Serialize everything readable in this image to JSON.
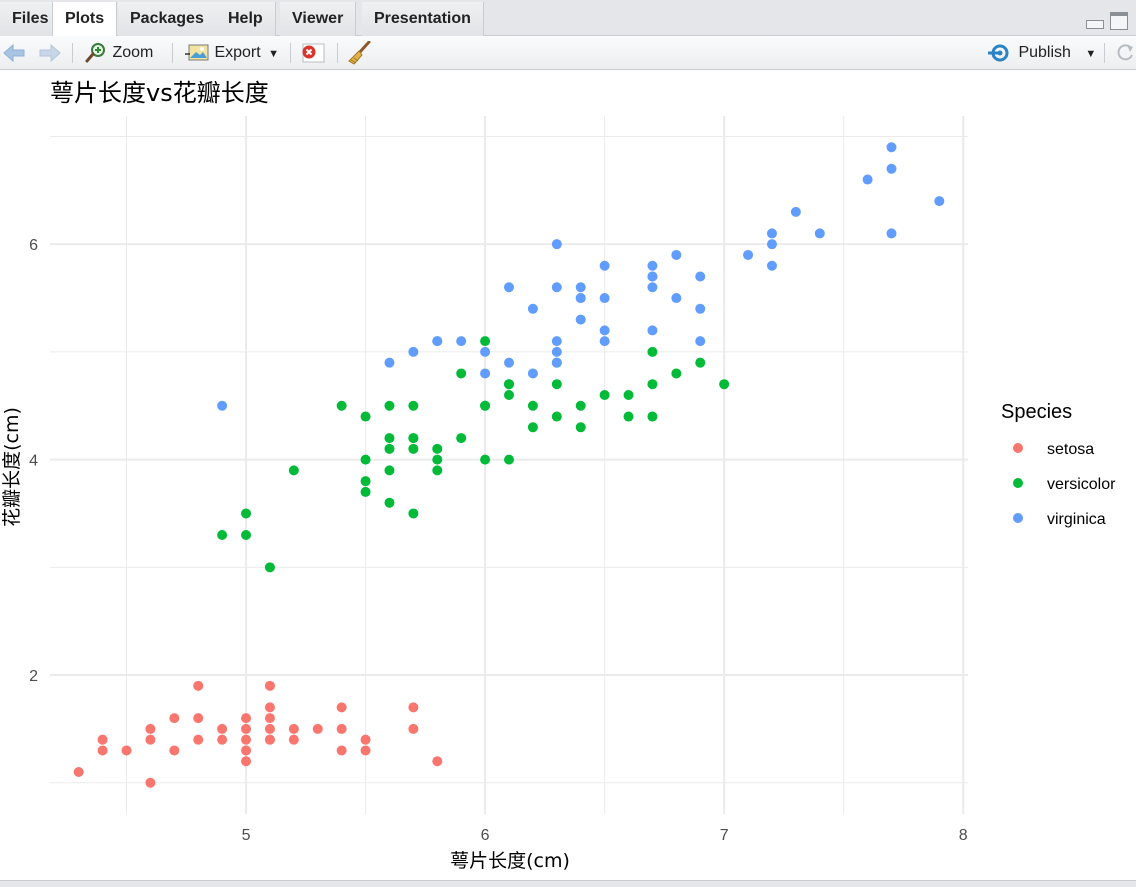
{
  "tabs": [
    {
      "label": "Files",
      "active": false
    },
    {
      "label": "Plots",
      "active": true
    },
    {
      "label": "Packages",
      "active": false
    },
    {
      "label": "Help",
      "active": false
    },
    {
      "label": "Viewer",
      "active": false
    },
    {
      "label": "Presentation",
      "active": false
    }
  ],
  "toolbar": {
    "zoom_label": "Zoom",
    "export_label": "Export",
    "publish_label": "Publish",
    "icons": {
      "back": "arrow-left-icon",
      "forward": "arrow-right-icon",
      "zoom": "magnifier-icon",
      "export": "image-export-icon",
      "remove": "remove-plot-icon",
      "clear": "broom-icon",
      "publish": "publish-icon",
      "refresh": "refresh-icon"
    }
  },
  "colors": {
    "setosa": "#F8766D",
    "versicolor": "#00BA38",
    "virginica": "#619CFF",
    "grid": "#ebebeb"
  },
  "chart_data": {
    "type": "scatter",
    "title": "萼片长度vs花瓣长度",
    "xlabel": "萼片长度(cm)",
    "ylabel": "花瓣长度(cm)",
    "xlim": [
      4.18,
      8.02
    ],
    "ylim": [
      0.71,
      7.19
    ],
    "xticks": [
      "5",
      "6",
      "7",
      "8"
    ],
    "yticks": [
      "2",
      "4",
      "6"
    ],
    "grid": true,
    "legend": {
      "title": "Species",
      "position": "right"
    },
    "series": [
      {
        "name": "setosa",
        "color": "#F8766D",
        "x": [
          4.3,
          4.4,
          4.4,
          4.5,
          4.6,
          4.6,
          4.6,
          4.7,
          4.7,
          4.8,
          4.8,
          4.8,
          4.9,
          4.9,
          5.0,
          5.0,
          5.0,
          5.0,
          5.0,
          5.1,
          5.1,
          5.1,
          5.1,
          5.1,
          5.1,
          5.2,
          5.2,
          5.3,
          5.4,
          5.4,
          5.4,
          5.5,
          5.5,
          5.7,
          5.7,
          5.8
        ],
        "y": [
          1.1,
          1.3,
          1.4,
          1.3,
          1.0,
          1.4,
          1.5,
          1.3,
          1.6,
          1.4,
          1.6,
          1.9,
          1.4,
          1.5,
          1.2,
          1.3,
          1.4,
          1.5,
          1.6,
          1.4,
          1.5,
          1.6,
          1.7,
          1.9,
          1.4,
          1.4,
          1.5,
          1.5,
          1.3,
          1.5,
          1.7,
          1.3,
          1.4,
          1.5,
          1.7,
          1.2
        ]
      },
      {
        "name": "versicolor",
        "color": "#00BA38",
        "x": [
          4.9,
          5.0,
          5.0,
          5.1,
          5.2,
          5.4,
          5.5,
          5.5,
          5.5,
          5.5,
          5.6,
          5.6,
          5.6,
          5.6,
          5.6,
          5.7,
          5.7,
          5.7,
          5.7,
          5.7,
          5.8,
          5.8,
          5.8,
          5.9,
          5.9,
          6.0,
          6.0,
          6.0,
          6.0,
          6.1,
          6.1,
          6.1,
          6.1,
          6.2,
          6.2,
          6.3,
          6.3,
          6.3,
          6.4,
          6.4,
          6.5,
          6.6,
          6.6,
          6.7,
          6.7,
          6.7,
          6.8,
          6.9,
          7.0
        ],
        "y": [
          3.3,
          3.3,
          3.5,
          3.0,
          3.9,
          4.5,
          3.7,
          3.8,
          4.0,
          4.4,
          3.6,
          3.9,
          4.1,
          4.2,
          4.5,
          3.5,
          4.1,
          4.2,
          4.5,
          4.2,
          3.9,
          4.0,
          4.1,
          4.2,
          4.8,
          4.0,
          4.5,
          5.1,
          4.5,
          4.0,
          4.6,
          4.7,
          4.7,
          4.3,
          4.5,
          4.4,
          4.7,
          4.9,
          4.3,
          4.5,
          4.6,
          4.4,
          4.6,
          4.4,
          4.7,
          5.0,
          4.8,
          4.9,
          4.7
        ]
      },
      {
        "name": "virginica",
        "color": "#619CFF",
        "x": [
          4.9,
          5.6,
          5.7,
          5.8,
          5.8,
          5.9,
          6.0,
          6.0,
          6.1,
          6.1,
          6.2,
          6.2,
          6.3,
          6.3,
          6.3,
          6.3,
          6.3,
          6.4,
          6.4,
          6.4,
          6.4,
          6.5,
          6.5,
          6.5,
          6.5,
          6.7,
          6.7,
          6.7,
          6.7,
          6.7,
          6.8,
          6.8,
          6.9,
          6.9,
          6.9,
          7.1,
          7.2,
          7.2,
          7.2,
          7.3,
          7.4,
          7.6,
          7.7,
          7.7,
          7.7,
          7.9
        ],
        "y": [
          4.5,
          4.9,
          5.0,
          5.1,
          5.1,
          5.1,
          4.8,
          5.0,
          4.9,
          5.6,
          4.8,
          5.4,
          4.9,
          5.0,
          5.1,
          5.6,
          6.0,
          5.3,
          5.5,
          5.5,
          5.6,
          5.1,
          5.2,
          5.5,
          5.8,
          5.2,
          5.6,
          5.7,
          5.7,
          5.8,
          5.5,
          5.9,
          5.1,
          5.4,
          5.7,
          5.9,
          5.8,
          6.0,
          6.1,
          6.3,
          6.1,
          6.6,
          6.1,
          6.7,
          6.9,
          6.4
        ]
      }
    ]
  }
}
